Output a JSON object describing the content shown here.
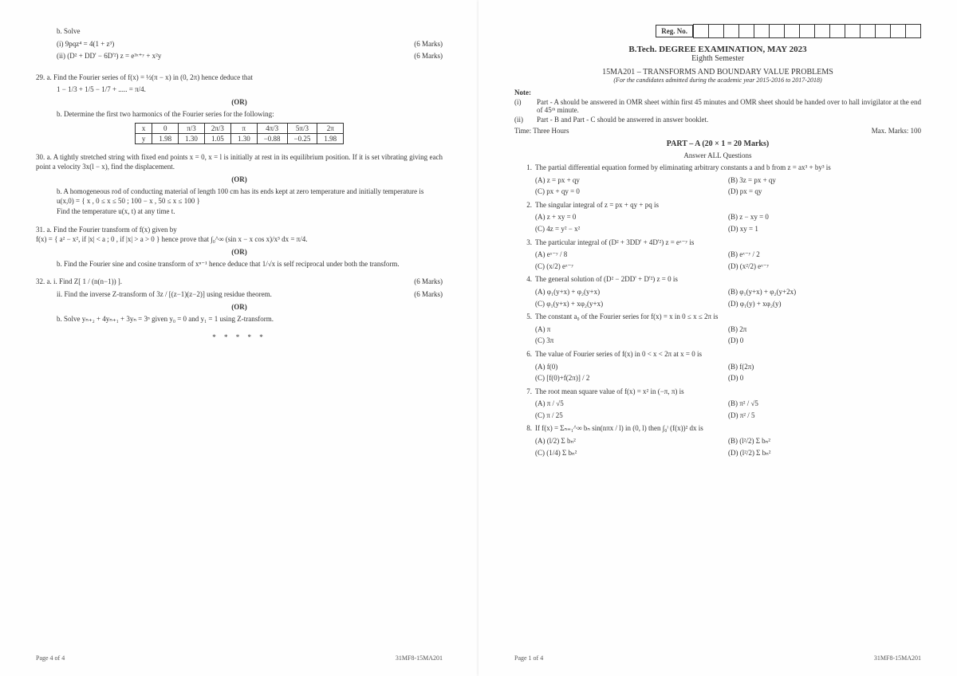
{
  "header": {
    "reg_label": "Reg. No.",
    "reg_cells": 15,
    "degree": "B.Tech. DEGREE EXAMINATION, MAY 2023",
    "semester": "Eighth Semester",
    "code": "15MA201 – TRANSFORMS AND BOUNDARY VALUE PROBLEMS",
    "for": "(For the candidates admitted during the academic year 2015-2016 to 2017-2018)",
    "note_label": "Note:",
    "notes": [
      {
        "num": "(i)",
        "text": "Part - A should be answered in OMR sheet within first 45 minutes and OMR sheet should be handed over to hall invigilator at the end of 45ᵗʰ minute."
      },
      {
        "num": "(ii)",
        "text": "Part - B and Part - C should be answered in answer booklet."
      }
    ],
    "time": "Time: Three Hours",
    "marks": "Max. Marks: 100",
    "part_a": "PART – A (20 × 1 = 20 Marks)",
    "answer_all": "Answer ALL Questions"
  },
  "partA": [
    {
      "n": "1.",
      "text": "The partial differential equation formed by eliminating arbitrary constants a and b from z = ax³ + by³ is",
      "opts": [
        "(A)  z = px + qy",
        "(B)  3z = px + qy",
        "(C)  px + qy = 0",
        "(D)  px = qy"
      ]
    },
    {
      "n": "2.",
      "text": "The singular integral of z = px + qy + pq is",
      "opts": [
        "(A)  z + xy = 0",
        "(B)  z − xy = 0",
        "(C)  4z = y² − x²",
        "(D)  xy = 1"
      ]
    },
    {
      "n": "3.",
      "text": "The particular integral of (D² + 3DD' + 4D'²) z = eˣ⁻ʸ is",
      "opts": [
        "(A)  eˣ⁻ʸ / 8",
        "(B)  eˣ⁻ʸ / 2",
        "(C)  (x/2) eˣ⁻ʸ",
        "(D)  (x²/2) eˣ⁻ʸ"
      ]
    },
    {
      "n": "4.",
      "text": "The general solution of (D² − 2DD' + D'²) z = 0 is",
      "opts": [
        "(A)  φ₁(y+x) + φ₂(y+x)",
        "(B)  φ₁(y+x) + φ₂(y+2x)",
        "(C)  φ₁(y+x) + xφ₂(y+x)",
        "(D)  φ₁(y) + xφ₂(y)"
      ]
    },
    {
      "n": "5.",
      "text": "The constant a₀ of the Fourier series for f(x) = x in 0 ≤ x ≤ 2π is",
      "opts": [
        "(A)  π",
        "(B)  2π",
        "(C)  3π",
        "(D)  0"
      ]
    },
    {
      "n": "6.",
      "text": "The value of Fourier series of f(x) in 0 < x < 2π at x = 0 is",
      "opts": [
        "(A)  f(0)",
        "(B)  f(2π)",
        "(C)  [f(0)+f(2π)] / 2",
        "(D)  0"
      ]
    },
    {
      "n": "7.",
      "text": "The root mean square value of f(x) = x² in (−π, π) is",
      "opts": [
        "(A)  π / √5",
        "(B)  π² / √5",
        "(C)  π / 25",
        "(D)  π² / 5"
      ]
    },
    {
      "n": "8.",
      "text": "If f(x) = Σₙ₌₁^∞ bₙ sin(nπx / l) in (0, l) then ∫₀ˡ (f(x))² dx is",
      "opts": [
        "(A)  (l/2) Σ bₙ²",
        "(B)  (l²/2) Σ bₙ²",
        "(C)  (1/4) Σ bₙ²",
        "(D)  (l²/2) Σ bₙ²"
      ]
    }
  ],
  "left": {
    "q_b": "b. Solve",
    "q_b_i": "(i)     9pqz⁴ = 4(1 + z³)",
    "q_b_ii": "(ii)    (D² + DD' − 6D'²) z = e³ˣ⁺ʸ + x²y",
    "marks6": "(6 Marks)",
    "q29a": "29. a.  Find  the  Fourier  series  of  f(x) = ½(π − x)  in  (0, 2π)  hence  deduce  that",
    "q29a_series": "1 − 1/3 + 1/5 − 1/7 + ..... = π/4.",
    "or": "(OR)",
    "q29b": "b. Determine the first two harmonics of the Fourier series for the following:",
    "table": {
      "row1": [
        "x",
        "0",
        "π/3",
        "2π/3",
        "π",
        "4π/3",
        "5π/3",
        "2π"
      ],
      "row2": [
        "y",
        "1.98",
        "1.30",
        "1.05",
        "1.30",
        "−0.88",
        "−0.25",
        "1.98"
      ]
    },
    "q30a": "30. a.  A tightly stretched string with fixed end points x = 0, x = l is initially at rest in its equilibrium position. If it is set vibrating giving each point a velocity 3x(l − x), find the displacement.",
    "q30b": "b. A homogeneous rod of conducting material of length 100 cm has its ends kept at zero temperature and initially temperature is",
    "q30b_piece": "u(x,0) = { x , 0 ≤ x ≤ 50 ; 100 − x , 50 ≤ x ≤ 100 }",
    "q30b_end": "Find the temperature u(x, t) at any time t.",
    "q31a": "31. a.  Find the Fourier transform of f(x) given by",
    "q31a_piece": "f(x) = { a² − x², if |x| < a ; 0 , if |x| > a > 0 }  hence prove that ∫₀^∞ (sin x − x cos x)/x³ dx = π/4.",
    "q31b": "b. Find the Fourier sine and cosine transform of xⁿ⁻¹ hence deduce that 1/√x is self reciprocal under both the transform.",
    "q32a_i": "32. a. i.  Find Z[ 1 / (n(n−1)) ].",
    "q32a_ii": "ii. Find the inverse Z-transform of  3z / [(z−1)(z−2)]  using residue theorem.",
    "q32b": "b. Solve yₙ₊₂ + 4yₙ₊₁ + 3yₙ = 3ⁿ given y₀ = 0 and y₁ = 1 using Z-transform.",
    "stars": "* * * * *"
  },
  "footer": {
    "left_page": "Page 4 of 4",
    "right_page": "Page 1 of 4",
    "code": "31MF8-15MA201"
  },
  "style": {
    "page_bg": "#fefefe",
    "text_color": "#333333",
    "border_color": "#333333",
    "font_family": "Times New Roman",
    "base_fontsize": 9
  }
}
